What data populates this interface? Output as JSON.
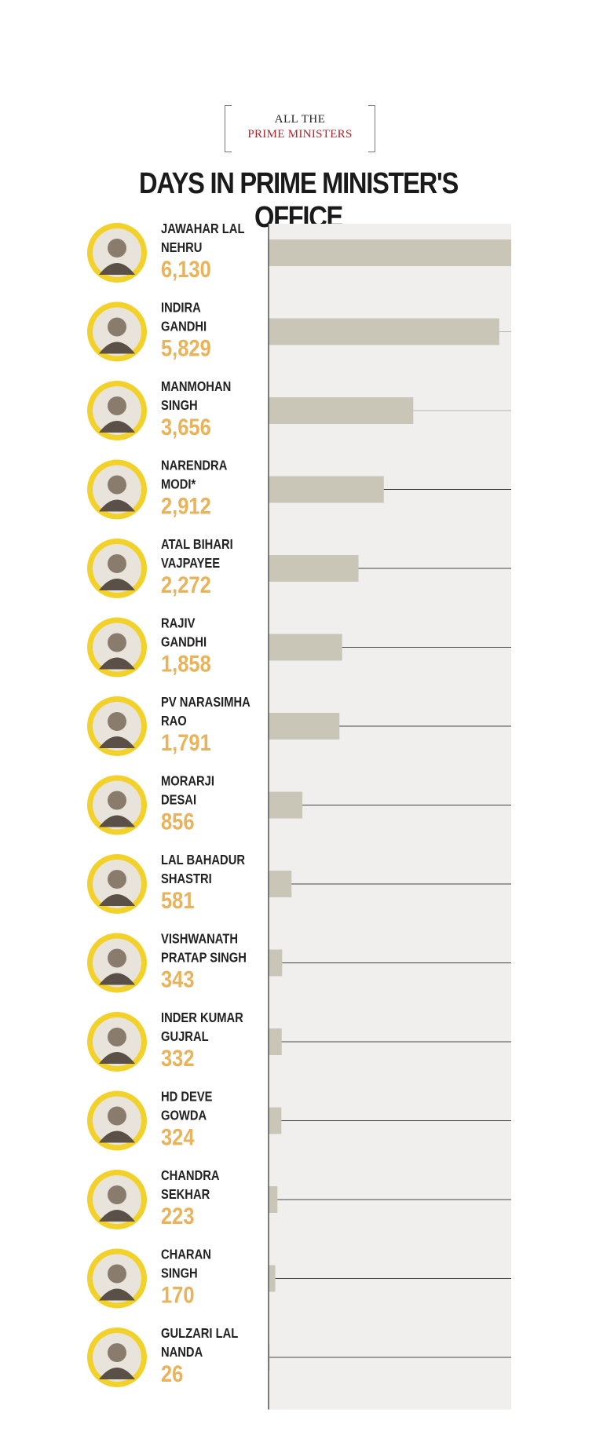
{
  "logo": {
    "line1": "ALL THE",
    "line2": "PRIME MINISTERS"
  },
  "colors": {
    "bar": "#c9c6b8",
    "panel": "#f0efed",
    "value": "#e8b35a",
    "name": "#222222",
    "avatar_ring": "#f2d12a",
    "title": "#1a1a1a",
    "logo_accent": "#b0242b"
  },
  "chart_data": {
    "type": "bar",
    "orientation": "horizontal",
    "title": "DAYS IN PRIME MINISTER'S OFFICE",
    "xlim": [
      0,
      6130
    ],
    "grid": false,
    "categories": [
      "JAWAHAR LAL NEHRU",
      "INDIRA GANDHI",
      "MANMOHAN SINGH",
      "NARENDRA MODI*",
      "ATAL BIHARI VAJPAYEE",
      "RAJIV GANDHI",
      "PV NARASIMHA RAO",
      "MORARJI DESAI",
      "LAL BAHADUR SHASTRI",
      "VISHWANATH PRATAP SINGH",
      "INDER KUMAR GUJRAL",
      "HD DEVE GOWDA",
      "CHANDRA SEKHAR",
      "CHARAN SINGH",
      "GULZARI LAL NANDA"
    ],
    "name_lines": [
      [
        "JAWAHAR LAL",
        "NEHRU"
      ],
      [
        "INDIRA",
        "GANDHI"
      ],
      [
        "MANMOHAN",
        "SINGH"
      ],
      [
        "NARENDRA",
        "MODI*"
      ],
      [
        "ATAL BIHARI",
        "VAJPAYEE"
      ],
      [
        "RAJIV",
        "GANDHI"
      ],
      [
        "PV NARASIMHA",
        "RAO"
      ],
      [
        "MORARJI",
        "DESAI"
      ],
      [
        "LAL BAHADUR",
        "SHASTRI"
      ],
      [
        "VISHWANATH",
        "PRATAP SINGH"
      ],
      [
        "INDER KUMAR",
        "GUJRAL"
      ],
      [
        "HD DEVE",
        "GOWDA"
      ],
      [
        "CHANDRA",
        "SEKHAR"
      ],
      [
        "CHARAN",
        "SINGH"
      ],
      [
        "GULZARI LAL",
        "NANDA"
      ]
    ],
    "values": [
      6130,
      5829,
      3656,
      2912,
      2272,
      1858,
      1791,
      856,
      581,
      343,
      332,
      324,
      223,
      170,
      26
    ],
    "value_labels": [
      "6,130",
      "5,829",
      "3,656",
      "2,912",
      "2,272",
      "1,858",
      "1,791",
      "856",
      "581",
      "343",
      "332",
      "324",
      "223",
      "170",
      "26"
    ]
  }
}
